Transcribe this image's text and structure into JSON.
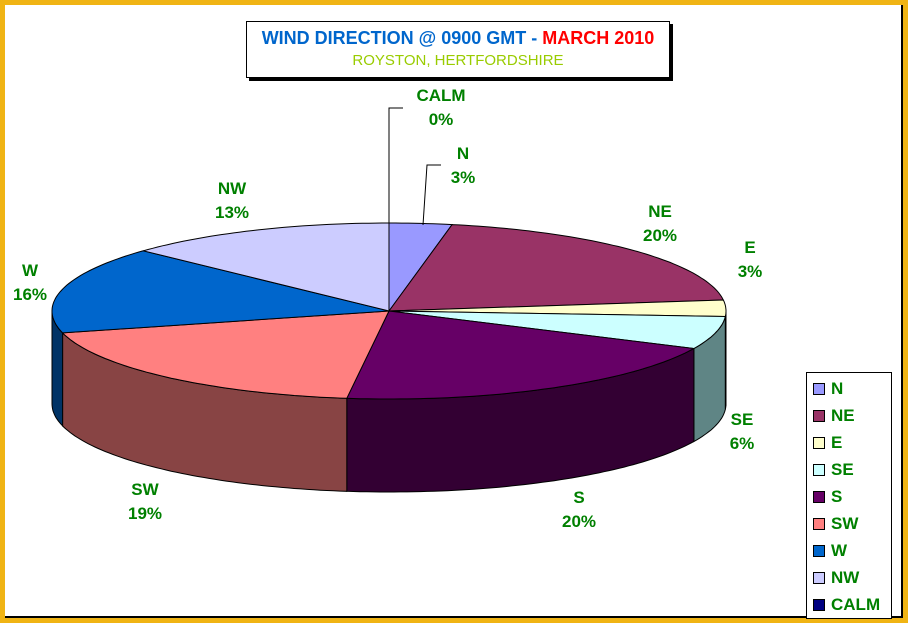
{
  "chart_data": {
    "type": "pie",
    "style": "3d",
    "title": {
      "main": "WIND DIRECTION @ 0900 GMT - ",
      "highlight": "MARCH 2010"
    },
    "subtitle": "ROYSTON, HERTFORDSHIRE",
    "legend_position": "right",
    "slices": [
      {
        "label": "N",
        "value": 3,
        "display": "3%",
        "color": "#9999ff",
        "side": "#5c5c99"
      },
      {
        "label": "NE",
        "value": 20,
        "display": "20%",
        "color": "#993366",
        "side": "#5c1f3d"
      },
      {
        "label": "E",
        "value": 3,
        "display": "3%",
        "color": "#ffffcc",
        "side": "#99997a"
      },
      {
        "label": "SE",
        "value": 6,
        "display": "6%",
        "color": "#ccffff",
        "side": "#5f8585"
      },
      {
        "label": "S",
        "value": 20,
        "display": "20%",
        "color": "#660066",
        "side": "#330033"
      },
      {
        "label": "SW",
        "value": 19,
        "display": "19%",
        "color": "#ff8080",
        "side": "#884444"
      },
      {
        "label": "W",
        "value": 16,
        "display": "16%",
        "color": "#0066cc",
        "side": "#003366"
      },
      {
        "label": "NW",
        "value": 13,
        "display": "13%",
        "color": "#ccccff",
        "side": "#7a7a99"
      },
      {
        "label": "CALM",
        "value": 0,
        "display": "0%",
        "color": "#000080",
        "side": "#000040"
      }
    ]
  }
}
